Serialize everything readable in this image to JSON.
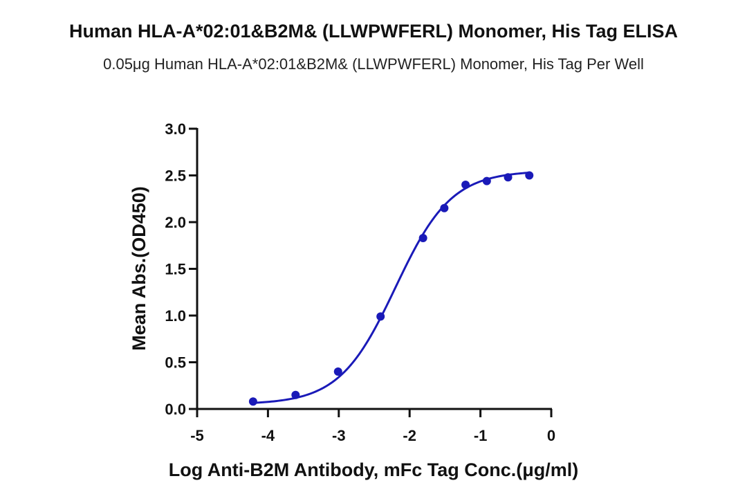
{
  "title": "Human HLA-A*02:01&B2M& (LLWPWFERL) Monomer, His Tag ELISA",
  "subtitle": "0.05μg Human HLA-A*02:01&B2M& (LLWPWFERL) Monomer, His Tag Per Well",
  "colors": {
    "series": "#1a1ab8",
    "axis": "#111111"
  },
  "chart_data": {
    "type": "scatter",
    "title": "Human HLA-A*02:01&B2M& (LLWPWFERL) Monomer, His Tag ELISA",
    "subtitle": "0.05μg Human HLA-A*02:01&B2M& (LLWPWFERL) Monomer, His Tag Per Well",
    "xlabel": "Log Anti-B2M Antibody, mFc Tag Conc.(μg/ml)",
    "ylabel": "Mean Abs.(OD450)",
    "xlim": [
      -5,
      0
    ],
    "ylim": [
      0,
      3.0
    ],
    "x_ticks": [
      -5,
      -4,
      -3,
      -2,
      -1,
      0
    ],
    "y_ticks": [
      "0.0",
      "0.5",
      "1.0",
      "1.5",
      "2.0",
      "2.5",
      "3.0"
    ],
    "grid": false,
    "series": [
      {
        "x": [
          -4.21,
          -3.61,
          -3.01,
          -2.41,
          -1.81,
          -1.51,
          -1.21,
          -0.91,
          -0.61,
          -0.31
        ],
        "y": [
          0.08,
          0.15,
          0.4,
          0.99,
          1.83,
          2.15,
          2.4,
          2.44,
          2.48,
          2.5
        ]
      }
    ],
    "fit_curve": {
      "model": "4PL sigmoid",
      "bottom": 0.05,
      "top": 2.55,
      "log_ec50": -2.2,
      "hill_slope": 1.1
    }
  }
}
